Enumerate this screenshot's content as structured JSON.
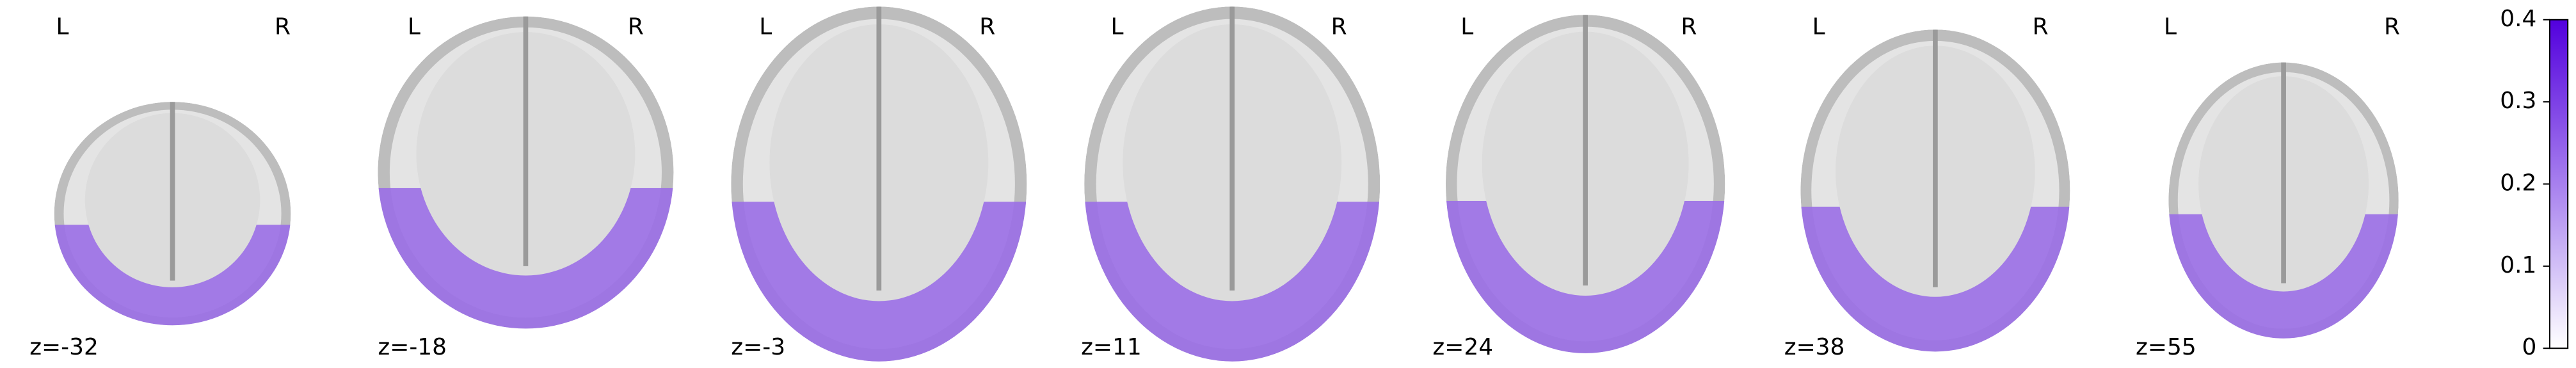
{
  "slices": [
    {
      "left": "L",
      "right": "R",
      "label": "z=-32"
    },
    {
      "left": "L",
      "right": "R",
      "label": "z=-18"
    },
    {
      "left": "L",
      "right": "R",
      "label": "z=-3"
    },
    {
      "left": "L",
      "right": "R",
      "label": "z=11"
    },
    {
      "left": "L",
      "right": "R",
      "label": "z=24"
    },
    {
      "left": "L",
      "right": "R",
      "label": "z=38"
    },
    {
      "left": "L",
      "right": "R",
      "label": "z=55"
    }
  ],
  "colorbar": {
    "lim": [
      0,
      0.4
    ],
    "ticks": [
      0,
      0.1,
      0.2,
      0.3,
      0.4
    ]
  }
}
